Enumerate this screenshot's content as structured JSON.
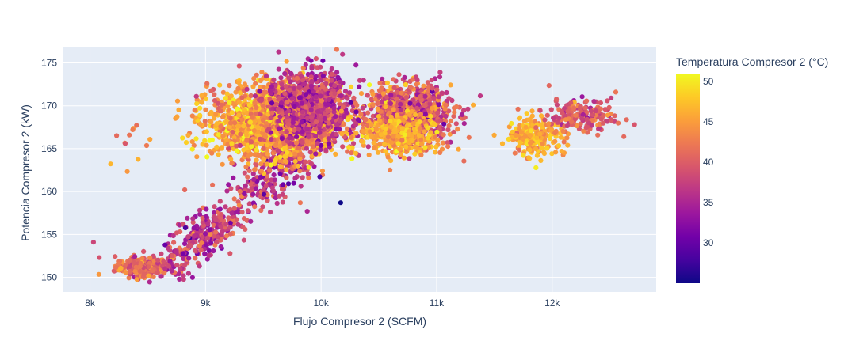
{
  "chart_data": {
    "type": "scatter",
    "title": "",
    "xlabel": "Flujo Compresor 2 (SCFM)",
    "ylabel": "Potencia Compresor 2 (kW)",
    "xlim": [
      7770,
      12900
    ],
    "ylim": [
      148.3,
      176.8
    ],
    "x_ticks": [
      8000,
      9000,
      10000,
      11000,
      12000
    ],
    "x_tick_labels": [
      "8k",
      "9k",
      "10k",
      "11k",
      "12k"
    ],
    "y_ticks": [
      150,
      155,
      160,
      165,
      170,
      175
    ],
    "y_tick_labels": [
      "150",
      "155",
      "160",
      "165",
      "170",
      "175"
    ],
    "grid": true,
    "colorbar": {
      "title": "Temperatura Compresor 2 (°C)",
      "range": [
        25,
        51
      ],
      "ticks": [
        30,
        35,
        40,
        45,
        50
      ],
      "tick_labels": [
        "30",
        "35",
        "40",
        "45",
        "50"
      ],
      "colorscale": [
        "#0d0887",
        "#46039f",
        "#7201a8",
        "#9c179e",
        "#bd3786",
        "#d8576b",
        "#ed7953",
        "#fb9f3a",
        "#fdca26",
        "#f0f921"
      ]
    },
    "clusters": [
      {
        "x": 8450,
        "y": 151.2,
        "sx": 110,
        "sy": 0.55,
        "n": 260,
        "t": 41,
        "ts": 2.5
      },
      {
        "x": 8720,
        "y": 152.0,
        "sx": 90,
        "sy": 1.0,
        "n": 70,
        "t": 38,
        "ts": 3
      },
      {
        "x": 8950,
        "y": 154.8,
        "sx": 110,
        "sy": 1.2,
        "n": 150,
        "t": 36,
        "ts": 3
      },
      {
        "x": 9150,
        "y": 156.5,
        "sx": 90,
        "sy": 1.0,
        "n": 90,
        "t": 37,
        "ts": 3
      },
      {
        "x": 9450,
        "y": 160.3,
        "sx": 130,
        "sy": 1.2,
        "n": 120,
        "t": 37,
        "ts": 3
      },
      {
        "x": 9700,
        "y": 163.0,
        "sx": 120,
        "sy": 1.0,
        "n": 90,
        "t": 37,
        "ts": 3
      },
      {
        "x": 9600,
        "y": 168.0,
        "sx": 280,
        "sy": 2.0,
        "n": 1800,
        "t": 45,
        "ts": 3
      },
      {
        "x": 9900,
        "y": 170.0,
        "sx": 180,
        "sy": 2.2,
        "n": 800,
        "t": 37,
        "ts": 3
      },
      {
        "x": 10750,
        "y": 169.0,
        "sx": 190,
        "sy": 1.8,
        "n": 900,
        "t": 40,
        "ts": 3.5
      },
      {
        "x": 10650,
        "y": 166.5,
        "sx": 160,
        "sy": 1.2,
        "n": 300,
        "t": 46,
        "ts": 2
      },
      {
        "x": 11850,
        "y": 166.5,
        "sx": 130,
        "sy": 1.1,
        "n": 220,
        "t": 46,
        "ts": 2
      },
      {
        "x": 12250,
        "y": 168.8,
        "sx": 140,
        "sy": 1.0,
        "n": 180,
        "t": 40,
        "ts": 2.5
      },
      {
        "x": 8350,
        "y": 165.8,
        "sx": 80,
        "sy": 1.5,
        "n": 12,
        "t": 44,
        "ts": 2
      }
    ],
    "outliers": [
      {
        "x": 10170,
        "y": 158.7,
        "t": 25
      },
      {
        "x": 8030,
        "y": 154.1,
        "t": 38
      },
      {
        "x": 8080,
        "y": 152.3,
        "t": 39
      },
      {
        "x": 9880,
        "y": 157.7,
        "t": 35
      },
      {
        "x": 9820,
        "y": 158.7,
        "t": 42
      },
      {
        "x": 8920,
        "y": 171.1,
        "t": 37
      },
      {
        "x": 12620,
        "y": 166.4,
        "t": 41
      },
      {
        "x": 12550,
        "y": 171.6,
        "t": 42
      },
      {
        "x": 11280,
        "y": 166.3,
        "t": 42
      },
      {
        "x": 8820,
        "y": 160.2,
        "t": 41
      }
    ]
  }
}
